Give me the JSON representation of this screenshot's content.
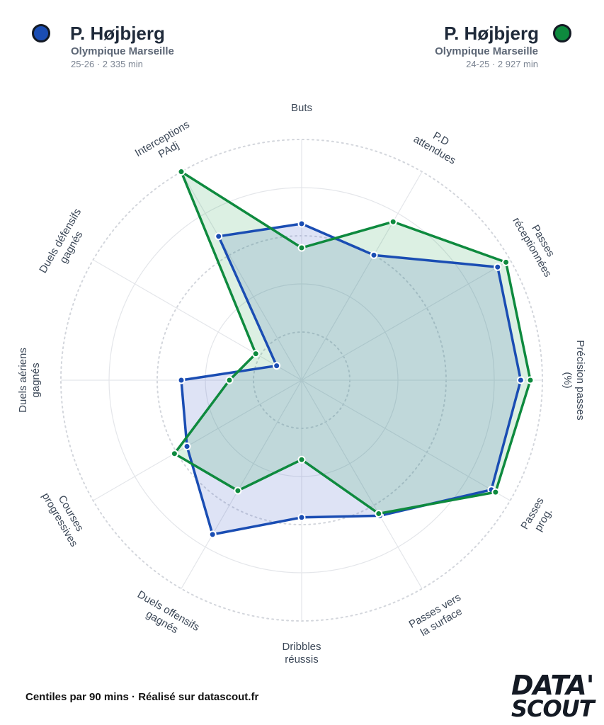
{
  "players": [
    {
      "name": "P. Højbjerg",
      "club": "Olympique Marseille",
      "meta": "25-26 · 2 335 min",
      "color": "#1a4db3",
      "fill": "rgba(70,100,200,0.18)"
    },
    {
      "name": "P. Højbjerg",
      "club": "Olympique Marseille",
      "meta": "24-25 · 2 927 min",
      "color": "#0e8a3e",
      "fill": "rgba(40,160,80,0.16)"
    }
  ],
  "chart_data": {
    "type": "radar",
    "axes": [
      [
        "Buts"
      ],
      [
        "P.D",
        "attendues"
      ],
      [
        "Passes",
        "réceptionnées"
      ],
      [
        "Précision passes",
        "(%)"
      ],
      [
        "Passes",
        "prog."
      ],
      [
        "Passes vers",
        "la surface"
      ],
      [
        "Dribbles",
        "réussis"
      ],
      [
        "Duels offensifs",
        "gagnés"
      ],
      [
        "Courses",
        "progressives"
      ],
      [
        "Duels aériens",
        "gagnés"
      ],
      [
        "Duels défensifs",
        "gagnés"
      ],
      [
        "Interceptions",
        "PAdj"
      ]
    ],
    "range": [
      0,
      100
    ],
    "series": [
      {
        "name": "P. Højbjerg",
        "values": [
          65,
          60,
          94,
          91,
          91,
          65,
          57,
          74,
          55,
          50,
          12,
          69
        ]
      },
      {
        "name": "P. Højbjerg",
        "values": [
          55,
          76,
          98,
          95,
          93,
          64,
          33,
          53,
          61,
          30,
          22,
          100
        ]
      }
    ]
  },
  "footer": "Centiles par 90 mins · Réalisé sur datascout.fr",
  "logo": {
    "line1": "DATA'",
    "line2": "SCOUT"
  }
}
